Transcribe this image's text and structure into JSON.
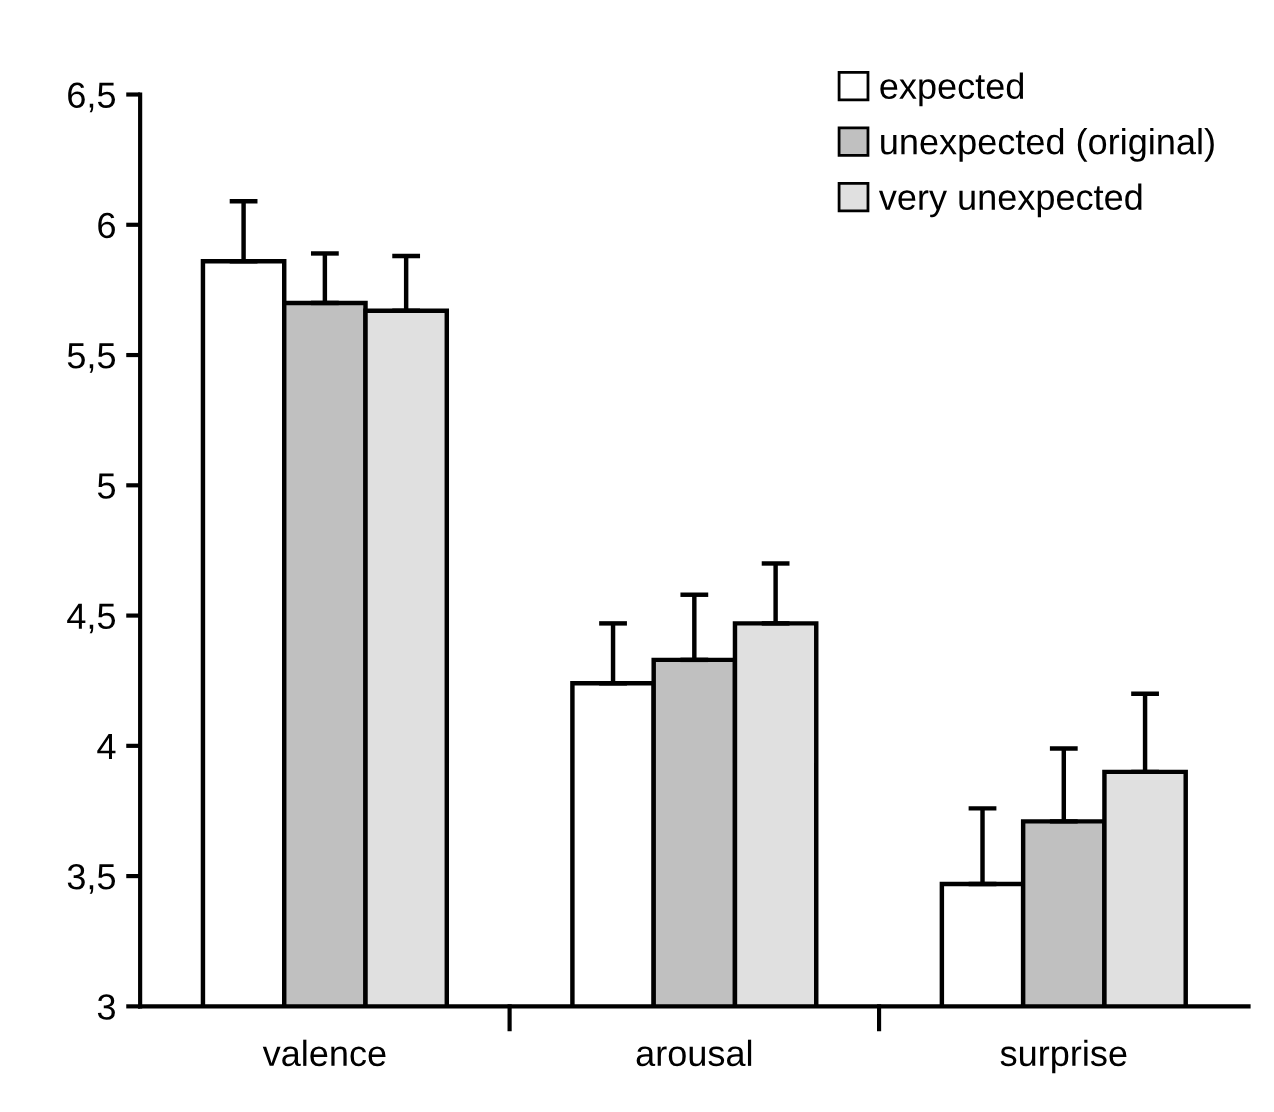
{
  "chart_data": {
    "type": "bar",
    "categories": [
      "valence",
      "arousal",
      "surprise"
    ],
    "series": [
      {
        "name": "expected",
        "color": "#ffffff",
        "values": [
          5.86,
          4.24,
          3.47
        ],
        "errors": [
          [
            5.86,
            6.09
          ],
          [
            4.24,
            4.47
          ],
          [
            3.47,
            3.76
          ]
        ]
      },
      {
        "name": "unexpected (original)",
        "color": "#c0c0c0",
        "values": [
          5.7,
          4.33,
          3.71
        ],
        "errors": [
          [
            5.7,
            5.89
          ],
          [
            4.33,
            4.58
          ],
          [
            3.71,
            3.99
          ]
        ]
      },
      {
        "name": "very unexpected",
        "color": "#e0e0e0",
        "values": [
          5.67,
          4.47,
          3.9
        ],
        "errors": [
          [
            5.67,
            5.88
          ],
          [
            4.47,
            4.7
          ],
          [
            3.9,
            4.2
          ]
        ]
      }
    ],
    "ylim": [
      3,
      6.5
    ],
    "yticks": [
      {
        "value": 3,
        "label": "3"
      },
      {
        "value": 3.5,
        "label": "3,5"
      },
      {
        "value": 4,
        "label": "4"
      },
      {
        "value": 4.5,
        "label": "4,5"
      },
      {
        "value": 5,
        "label": "5"
      },
      {
        "value": 5.5,
        "label": "5,5"
      },
      {
        "value": 6,
        "label": "6"
      },
      {
        "value": 6.5,
        "label": "6,5"
      }
    ],
    "grid": false,
    "legend": "top right"
  }
}
